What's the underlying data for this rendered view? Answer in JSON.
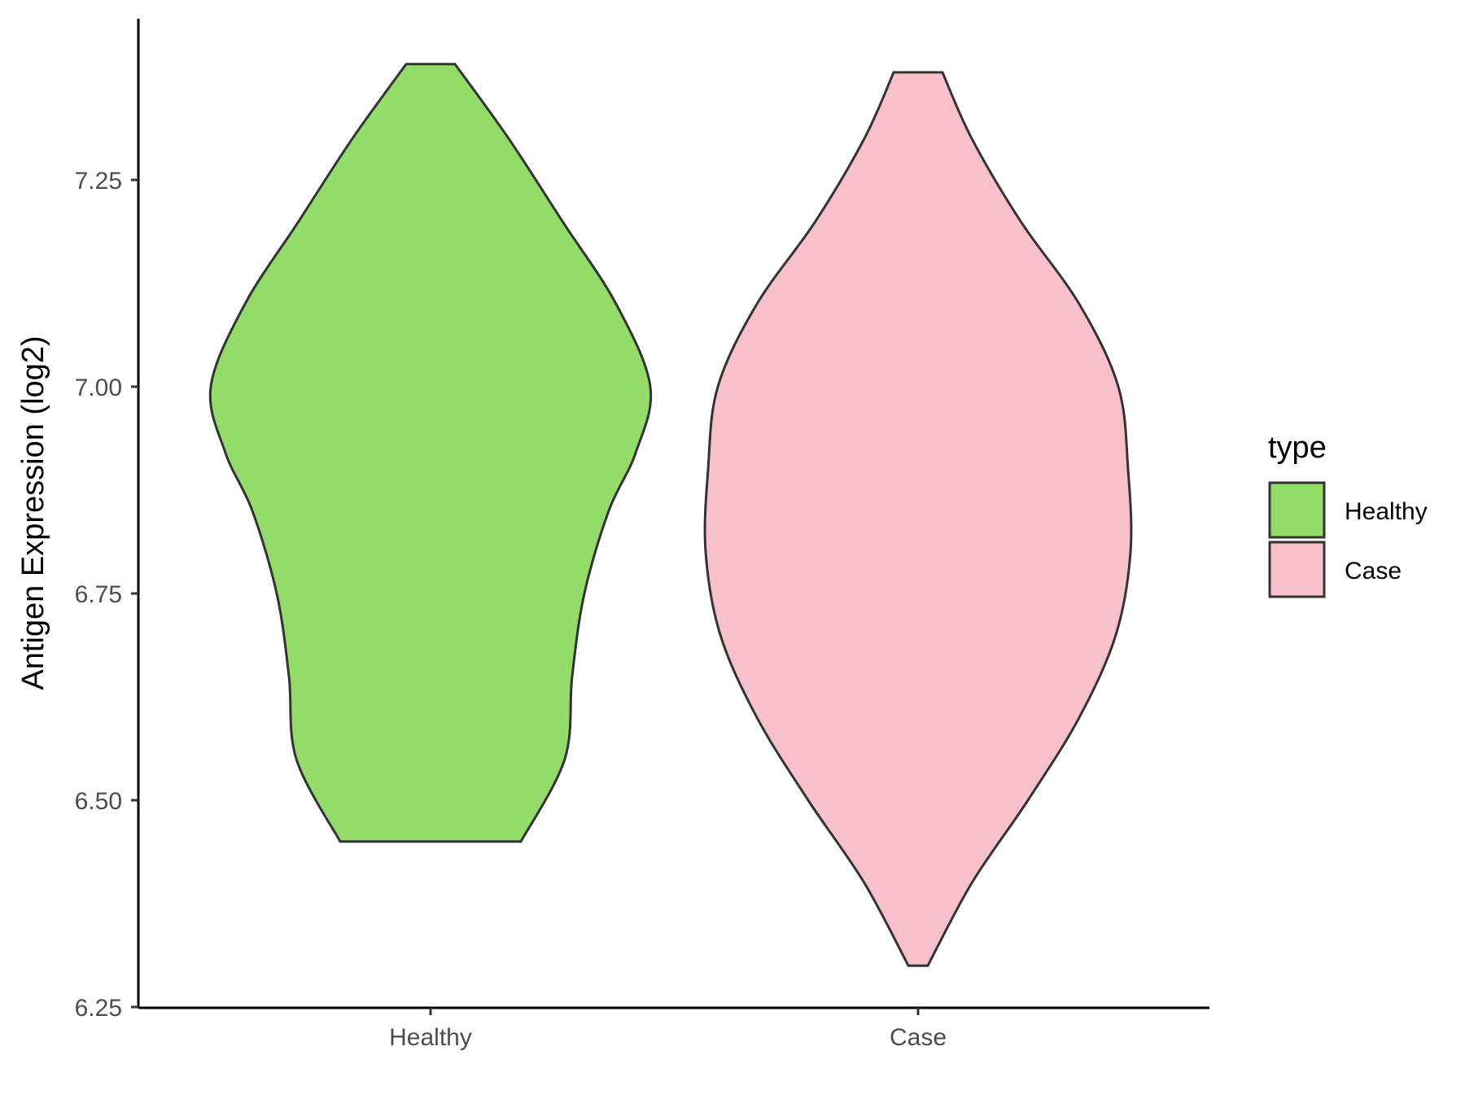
{
  "chart_data": {
    "type": "violin",
    "ylabel": "Antigen Expression (log2)",
    "xlabel": "",
    "ylim": [
      6.25,
      7.43
    ],
    "yticks": [
      6.25,
      6.5,
      6.75,
      7.0,
      7.25
    ],
    "ytick_labels": [
      "6.25",
      "6.50",
      "6.75",
      "7.00",
      "7.25"
    ],
    "categories": [
      "Healthy",
      "Case"
    ],
    "legend": {
      "title": "type",
      "position": "right",
      "entries": [
        {
          "label": "Healthy",
          "color": "#93dc6a"
        },
        {
          "label": "Case",
          "color": "#f8c0cb"
        }
      ]
    },
    "series": [
      {
        "name": "Healthy",
        "color": "#93dc6a",
        "min": 6.45,
        "max": 7.39,
        "density_profile": [
          {
            "y": 6.45,
            "halfwidth": 0.37
          },
          {
            "y": 6.55,
            "halfwidth": 0.55
          },
          {
            "y": 6.65,
            "halfwidth": 0.58
          },
          {
            "y": 6.75,
            "halfwidth": 0.63
          },
          {
            "y": 6.85,
            "halfwidth": 0.73
          },
          {
            "y": 6.92,
            "halfwidth": 0.84
          },
          {
            "y": 7.0,
            "halfwidth": 0.9
          },
          {
            "y": 7.1,
            "halfwidth": 0.76
          },
          {
            "y": 7.2,
            "halfwidth": 0.54
          },
          {
            "y": 7.3,
            "halfwidth": 0.32
          },
          {
            "y": 7.39,
            "halfwidth": 0.1
          }
        ]
      },
      {
        "name": "Case",
        "color": "#f8c0cb",
        "min": 6.3,
        "max": 7.38,
        "density_profile": [
          {
            "y": 6.3,
            "halfwidth": 0.04
          },
          {
            "y": 6.4,
            "halfwidth": 0.22
          },
          {
            "y": 6.5,
            "halfwidth": 0.45
          },
          {
            "y": 6.6,
            "halfwidth": 0.66
          },
          {
            "y": 6.7,
            "halfwidth": 0.81
          },
          {
            "y": 6.8,
            "halfwidth": 0.87
          },
          {
            "y": 6.9,
            "halfwidth": 0.86
          },
          {
            "y": 7.0,
            "halfwidth": 0.82
          },
          {
            "y": 7.1,
            "halfwidth": 0.66
          },
          {
            "y": 7.2,
            "halfwidth": 0.42
          },
          {
            "y": 7.3,
            "halfwidth": 0.22
          },
          {
            "y": 7.38,
            "halfwidth": 0.1
          }
        ]
      }
    ]
  }
}
